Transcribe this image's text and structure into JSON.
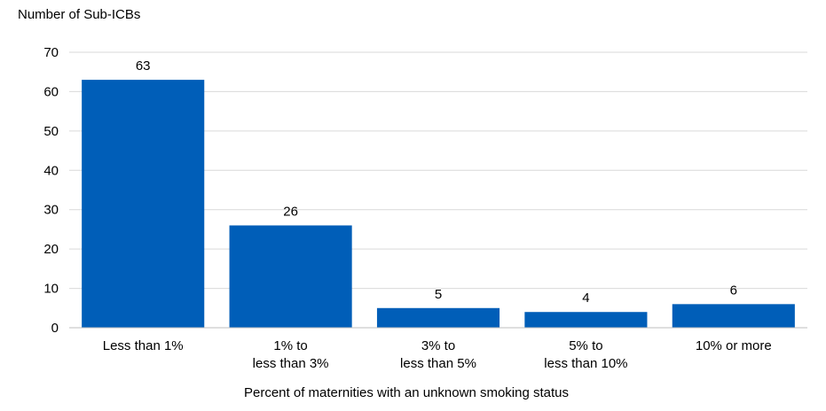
{
  "chart_data": {
    "type": "bar",
    "ylabel": "Number of Sub-ICBs",
    "xlabel": "Percent of maternities with an unknown smoking status",
    "categories": [
      [
        "Less than 1%"
      ],
      [
        "1% to",
        "less than 3%"
      ],
      [
        "3% to",
        "less than 5%"
      ],
      [
        "5% to",
        "less than 10%"
      ],
      [
        "10% or more"
      ]
    ],
    "values": [
      63,
      26,
      5,
      4,
      6
    ],
    "ylim": [
      0,
      70
    ],
    "yticks": [
      "0",
      "10",
      "20",
      "30",
      "40",
      "50",
      "60",
      "70"
    ],
    "data_labels": [
      "63",
      "26",
      "5",
      "4",
      "6"
    ],
    "grid": true,
    "legend": "none",
    "colors": {
      "bar": "#005EB8",
      "grid": "#D9D9D9",
      "axis": "#BFBFBF",
      "text": "#000000"
    }
  }
}
